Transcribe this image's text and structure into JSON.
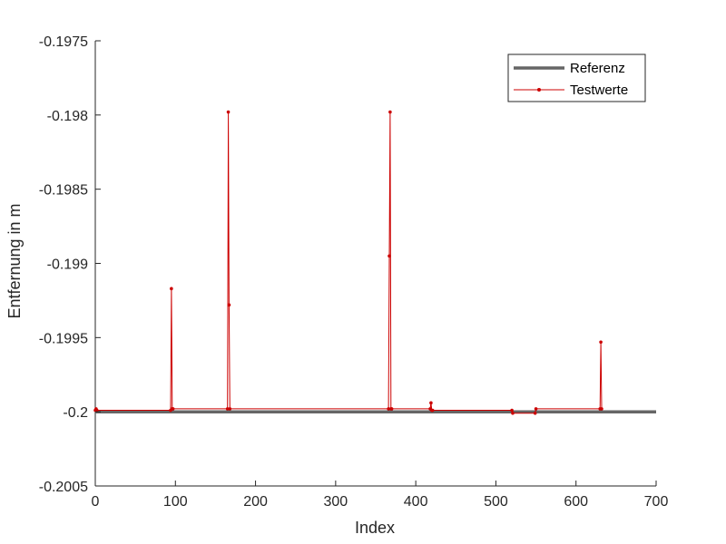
{
  "chart_data": {
    "type": "line",
    "title": "",
    "xlabel": "Index",
    "ylabel": "Entfernung in m",
    "xlim": [
      0,
      700
    ],
    "ylim": [
      -0.2005,
      -0.1975
    ],
    "xticks": [
      0,
      100,
      200,
      300,
      400,
      500,
      600,
      700
    ],
    "yticks": [
      -0.2005,
      -0.2,
      -0.1995,
      -0.199,
      -0.1985,
      -0.198,
      -0.1975
    ],
    "xtick_labels": [
      "0",
      "100",
      "200",
      "300",
      "400",
      "500",
      "600",
      "700"
    ],
    "ytick_labels": [
      "-0.2005",
      "-0.2",
      "-0.1995",
      "-0.199",
      "-0.1985",
      "-0.198",
      "-0.1975"
    ],
    "grid": false,
    "legend_position": "top-right",
    "series": [
      {
        "name": "Referenz",
        "color": "#666666",
        "style": "line",
        "x": [
          0,
          700
        ],
        "y": [
          -0.2,
          -0.2
        ]
      },
      {
        "name": "Testwerte",
        "color": "#cc0000",
        "style": "line-with-markers",
        "x": [
          0,
          1,
          2,
          94,
          95,
          96,
          97,
          165,
          166,
          167,
          168,
          366,
          367,
          368,
          369,
          370,
          418,
          419,
          420,
          421,
          520,
          521,
          549,
          550,
          630,
          631,
          632
        ],
        "y": [
          -0.19999,
          -0.19998,
          -0.19999,
          -0.19999,
          -0.19917,
          -0.19998,
          -0.19998,
          -0.19998,
          -0.19798,
          -0.19928,
          -0.19998,
          -0.19998,
          -0.19895,
          -0.19798,
          -0.19998,
          -0.19998,
          -0.19998,
          -0.19994,
          -0.19999,
          -0.19999,
          -0.19999,
          -0.20001,
          -0.20001,
          -0.19998,
          -0.19998,
          -0.19953,
          -0.19998
        ]
      }
    ]
  }
}
